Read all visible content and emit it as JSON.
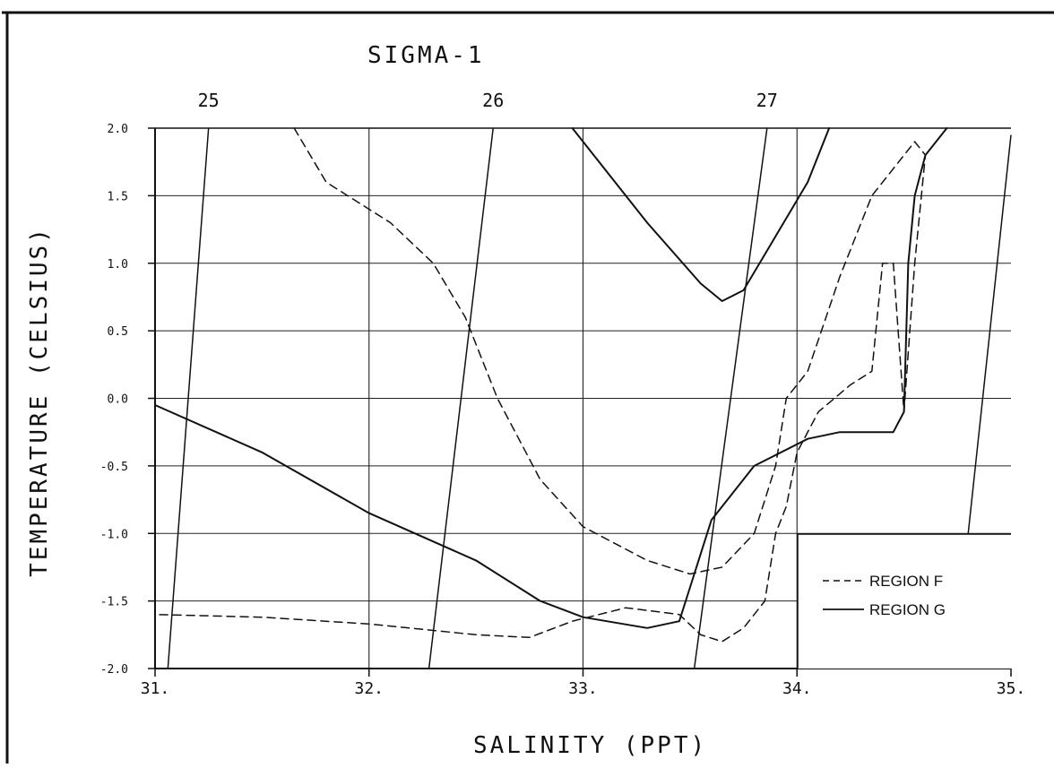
{
  "chart_data": {
    "type": "line",
    "title": "SIGMA-1",
    "xlabel": "SALINITY (PPT)",
    "ylabel": "TEMPERATURE (CELSIUS)",
    "xlim": [
      31,
      35
    ],
    "ylim": [
      -2.0,
      2.0
    ],
    "x_ticks": [
      31,
      32,
      33,
      34,
      35
    ],
    "x_tick_labels": [
      "31.",
      "32.",
      "33.",
      "34.",
      "35."
    ],
    "y_ticks": [
      -2.0,
      -1.5,
      -1.0,
      -0.5,
      0.0,
      0.5,
      1.0,
      1.5,
      2.0
    ],
    "y_tick_labels": [
      "-2.0",
      "-1.5",
      "-1.0",
      "-0.5",
      "0.0",
      "0.5",
      "1.0",
      "1.5",
      "2.0"
    ],
    "grid": true,
    "legend_position": "bottom-right",
    "isopycnals": [
      {
        "label": "25",
        "points": [
          [
            31.06,
            -2.0
          ],
          [
            31.25,
            2.0
          ]
        ]
      },
      {
        "label": "26",
        "points": [
          [
            32.28,
            -2.0
          ],
          [
            32.58,
            2.0
          ]
        ]
      },
      {
        "label": "27",
        "points": [
          [
            33.52,
            -2.0
          ],
          [
            33.86,
            2.0
          ]
        ]
      },
      {
        "label": "",
        "points": [
          [
            34.8,
            -1.0
          ],
          [
            35.0,
            1.95
          ]
        ]
      }
    ],
    "series": [
      {
        "name": "REGION F",
        "style": "dashed",
        "segments": [
          [
            [
              31.65,
              2.0
            ],
            [
              31.8,
              1.6
            ],
            [
              32.1,
              1.3
            ],
            [
              32.3,
              1.0
            ],
            [
              32.45,
              0.6
            ],
            [
              32.6,
              0.0
            ],
            [
              32.8,
              -0.6
            ],
            [
              33.0,
              -0.95
            ],
            [
              33.3,
              -1.2
            ],
            [
              33.5,
              -1.3
            ],
            [
              33.65,
              -1.25
            ],
            [
              33.8,
              -1.0
            ],
            [
              33.9,
              -0.5
            ],
            [
              33.95,
              -0.0
            ],
            [
              34.05,
              0.2
            ],
            [
              34.2,
              0.9
            ],
            [
              34.35,
              1.5
            ],
            [
              34.55,
              1.9
            ],
            [
              34.6,
              1.8
            ],
            [
              34.55,
              1.0
            ],
            [
              34.5,
              -0.1
            ],
            [
              34.45,
              1.0
            ],
            [
              34.4,
              1.0
            ],
            [
              34.35,
              0.2
            ],
            [
              34.25,
              0.1
            ],
            [
              34.1,
              -0.1
            ],
            [
              34.0,
              -0.4
            ],
            [
              33.95,
              -0.8
            ],
            [
              33.9,
              -1.0
            ],
            [
              33.85,
              -1.5
            ],
            [
              33.75,
              -1.7
            ],
            [
              33.65,
              -1.8
            ],
            [
              33.55,
              -1.75
            ],
            [
              33.45,
              -1.6
            ],
            [
              33.2,
              -1.55
            ],
            [
              32.95,
              -1.65
            ],
            [
              32.75,
              -1.77
            ],
            [
              32.5,
              -1.75
            ],
            [
              32.0,
              -1.67
            ],
            [
              31.5,
              -1.62
            ],
            [
              31.0,
              -1.6
            ]
          ]
        ]
      },
      {
        "name": "REGION G",
        "style": "solid",
        "segments": [
          [
            [
              31.0,
              -0.05
            ],
            [
              31.5,
              -0.4
            ],
            [
              32.0,
              -0.85
            ],
            [
              32.5,
              -1.2
            ],
            [
              32.8,
              -1.5
            ],
            [
              33.0,
              -1.62
            ],
            [
              33.3,
              -1.7
            ],
            [
              33.45,
              -1.65
            ],
            [
              33.5,
              -1.4
            ],
            [
              33.6,
              -0.9
            ],
            [
              33.8,
              -0.5
            ],
            [
              34.05,
              -0.3
            ],
            [
              34.2,
              -0.25
            ],
            [
              34.45,
              -0.25
            ],
            [
              34.5,
              -0.1
            ],
            [
              34.52,
              1.0
            ],
            [
              34.55,
              1.5
            ],
            [
              34.6,
              1.8
            ],
            [
              34.7,
              2.0
            ]
          ],
          [
            [
              32.95,
              2.0
            ],
            [
              33.3,
              1.3
            ],
            [
              33.55,
              0.85
            ],
            [
              33.65,
              0.72
            ],
            [
              33.75,
              0.8
            ],
            [
              33.9,
              1.2
            ],
            [
              34.05,
              1.6
            ],
            [
              34.15,
              2.0
            ]
          ]
        ]
      }
    ]
  }
}
